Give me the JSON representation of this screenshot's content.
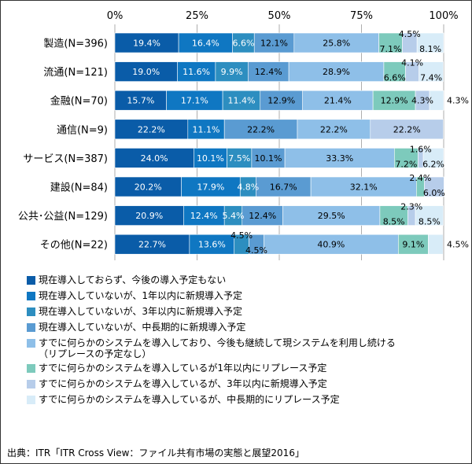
{
  "chart_data": {
    "type": "bar",
    "orientation": "horizontal",
    "stacked": true,
    "xlim": [
      0,
      100
    ],
    "x_ticks": [
      "0%",
      "25%",
      "50%",
      "75%",
      "100%"
    ],
    "grid": true,
    "legend_placement": "bottom",
    "categories": [
      "製造(N=396)",
      "流通(N=121)",
      "金融(N=70)",
      "通信(N=9)",
      "サービス(N=387)",
      "建設(N=84)",
      "公共･公益(N=129)",
      "その他(N=22)"
    ],
    "series": [
      {
        "name": "現在導入しておらず、今後の導入予定もない",
        "color": "#0a5ca8",
        "values": [
          19.4,
          19.0,
          15.7,
          22.2,
          24.0,
          20.2,
          20.9,
          22.7
        ]
      },
      {
        "name": "現在導入していないが、1年以内に新規導入予定",
        "color": "#0f77c2",
        "values": [
          16.4,
          11.6,
          17.1,
          11.1,
          10.1,
          17.9,
          12.4,
          13.6
        ]
      },
      {
        "name": "現在導入していないが、3年以内に新規導入予定",
        "color": "#2d8ec0",
        "values": [
          6.6,
          9.9,
          11.4,
          0,
          7.5,
          4.8,
          5.4,
          4.5
        ]
      },
      {
        "name": "現在導入していないが、中長期的に新規導入予定",
        "color": "#5a9bd2",
        "values": [
          12.1,
          12.4,
          12.9,
          22.2,
          10.1,
          16.7,
          12.4,
          4.5
        ]
      },
      {
        "name": "すでに何らかのシステムを導入しており、今後も継続して現システムを利用し続ける\n（リプレースの予定なし）",
        "color": "#8ebfe8",
        "values": [
          25.8,
          28.9,
          21.4,
          22.2,
          33.3,
          32.1,
          29.5,
          40.9
        ]
      },
      {
        "name": "すでに何らかのシステムを導入しているが1年以内にリプレース予定",
        "color": "#7dcabc",
        "values": [
          7.1,
          6.6,
          12.9,
          0,
          7.2,
          2.4,
          8.5,
          9.1
        ]
      },
      {
        "name": "すでに何らかのシステムを導入しているが、3年以内に新規導入予定",
        "color": "#b7cdea",
        "values": [
          4.5,
          4.1,
          4.3,
          22.2,
          1.6,
          6.0,
          2.3,
          0
        ]
      },
      {
        "name": "すでに何らかのシステムを導入しているが、中長期的にリプレース予定",
        "color": "#d8ecf8",
        "values": [
          8.1,
          7.4,
          4.3,
          0,
          6.2,
          0,
          8.5,
          4.5
        ]
      }
    ],
    "labels": [
      [
        {
          "series": 0,
          "text": "19.4%"
        },
        {
          "series": 1,
          "text": "16.4%"
        },
        {
          "series": 2,
          "text": "6.6%"
        },
        {
          "series": 3,
          "text": "12.1%"
        },
        {
          "series": 4,
          "text": "25.8%"
        },
        {
          "series": 5,
          "text": "7.1%",
          "pos": "below"
        },
        {
          "series": 6,
          "text": "4.5%",
          "pos": "above"
        },
        {
          "series": 7,
          "text": "8.1%",
          "pos": "below"
        }
      ],
      [
        {
          "series": 0,
          "text": "19.0%"
        },
        {
          "series": 1,
          "text": "11.6%"
        },
        {
          "series": 2,
          "text": "9.9%"
        },
        {
          "series": 3,
          "text": "12.4%"
        },
        {
          "series": 4,
          "text": "28.9%"
        },
        {
          "series": 5,
          "text": "6.6%",
          "pos": "below"
        },
        {
          "series": 6,
          "text": "4.1%",
          "pos": "above"
        },
        {
          "series": 7,
          "text": "7.4%",
          "pos": "below"
        }
      ],
      [
        {
          "series": 0,
          "text": "15.7%"
        },
        {
          "series": 1,
          "text": "17.1%"
        },
        {
          "series": 2,
          "text": "11.4%"
        },
        {
          "series": 3,
          "text": "12.9%"
        },
        {
          "series": 4,
          "text": "21.4%"
        },
        {
          "series": 5,
          "text": "12.9%"
        },
        {
          "series": 6,
          "text": "4.3%"
        },
        {
          "series": 7,
          "text": "4.3%",
          "pos": "outside"
        }
      ],
      [
        {
          "series": 0,
          "text": "22.2%"
        },
        {
          "series": 1,
          "text": "11.1%"
        },
        {
          "series": 3,
          "text": "22.2%"
        },
        {
          "series": 4,
          "text": "22.2%"
        },
        {
          "series": 6,
          "text": "22.2%"
        }
      ],
      [
        {
          "series": 0,
          "text": "24.0%"
        },
        {
          "series": 1,
          "text": "10.1%"
        },
        {
          "series": 2,
          "text": "7.5%"
        },
        {
          "series": 3,
          "text": "10.1%"
        },
        {
          "series": 4,
          "text": "33.3%"
        },
        {
          "series": 5,
          "text": "7.2%",
          "pos": "below"
        },
        {
          "series": 6,
          "text": "1.6%",
          "pos": "above"
        },
        {
          "series": 7,
          "text": "6.2%",
          "pos": "below"
        }
      ],
      [
        {
          "series": 0,
          "text": "20.2%"
        },
        {
          "series": 1,
          "text": "17.9%"
        },
        {
          "series": 2,
          "text": "4.8%"
        },
        {
          "series": 3,
          "text": "16.7%"
        },
        {
          "series": 4,
          "text": "32.1%"
        },
        {
          "series": 5,
          "text": "2.4%",
          "pos": "above"
        },
        {
          "series": 6,
          "text": "6.0%",
          "pos": "below"
        }
      ],
      [
        {
          "series": 0,
          "text": "20.9%"
        },
        {
          "series": 1,
          "text": "12.4%"
        },
        {
          "series": 2,
          "text": "5.4%"
        },
        {
          "series": 3,
          "text": "12.4%"
        },
        {
          "series": 4,
          "text": "29.5%"
        },
        {
          "series": 5,
          "text": "8.5%",
          "pos": "below"
        },
        {
          "series": 6,
          "text": "2.3%",
          "pos": "above"
        },
        {
          "series": 7,
          "text": "8.5%",
          "pos": "below"
        }
      ],
      [
        {
          "series": 0,
          "text": "22.7%"
        },
        {
          "series": 1,
          "text": "13.6%"
        },
        {
          "series": 2,
          "text": "4.5%",
          "pos": "above"
        },
        {
          "series": 3,
          "text": "4.5%",
          "pos": "below"
        },
        {
          "series": 4,
          "text": "40.9%"
        },
        {
          "series": 5,
          "text": "9.1%"
        },
        {
          "series": 7,
          "text": "4.5%",
          "pos": "outside"
        }
      ]
    ]
  },
  "source": "出典：ITR「ITR Cross View：ファイル共有市場の実態と展望2016」"
}
